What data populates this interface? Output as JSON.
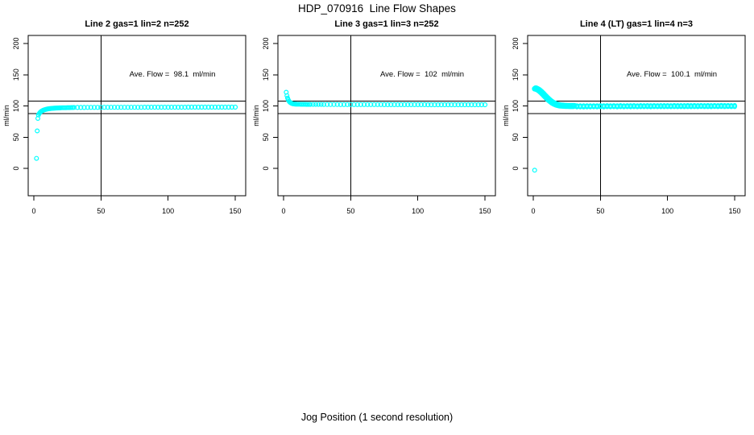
{
  "title": "HDP_070916  Line Flow Shapes",
  "xlabel": "Jog Position (1 second resolution)",
  "colors": {
    "points": "#00FFFF",
    "lines": "#000000",
    "background": "#FFFFFF"
  },
  "chart_data": {
    "type": "scatter",
    "marker": "open-circle",
    "xlim": [
      -4,
      158
    ],
    "ylim": [
      -44,
      213
    ],
    "xticks": [
      0,
      50,
      100,
      150
    ],
    "yticks": [
      0,
      50,
      100,
      150,
      200
    ],
    "ylabel": "ml/min",
    "vline_x": 50,
    "hlines": [
      108,
      87.5
    ],
    "annotation_anchor": {
      "x": 103,
      "y": 150
    },
    "panels": [
      {
        "title": "Line 2 gas=1 lin=2 n=252",
        "annotation": "Ave. Flow =  98.1  ml/min",
        "ave_flow": 98.1,
        "n": 252,
        "series": [
          {
            "name": "startup-transient",
            "ref": "p1_rise",
            "r": 2.4
          },
          {
            "name": "steady-flow",
            "ref": "p1_plateau",
            "r": 2.5
          }
        ]
      },
      {
        "title": "Line 3 gas=1 lin=3 n=252",
        "annotation": "Ave. Flow =  102  ml/min",
        "ave_flow": 102,
        "n": 252,
        "series": [
          {
            "name": "startup-transient",
            "ref": "p2_fall",
            "r": 2.4
          },
          {
            "name": "steady-flow",
            "ref": "p2_plateau",
            "r": 2.5
          }
        ]
      },
      {
        "title": "Line 4 (LT) gas=1 lin=4 n=3",
        "annotation": "Ave. Flow =  100.1  ml/min",
        "ave_flow": 100.1,
        "n": 3,
        "series": [
          {
            "name": "outlier-point",
            "ref": "p3_outlier",
            "r": 2.4
          },
          {
            "name": "startup-transient-run1",
            "ref": "p3_fall",
            "r": 2.8
          },
          {
            "name": "startup-transient-run2",
            "ref": "p3_fall",
            "dx": 0.6,
            "dy": 1.0,
            "r": 2.8
          },
          {
            "name": "steady-flow-run1",
            "ref": "p3_plateau",
            "r": 2.5
          },
          {
            "name": "steady-flow-run2",
            "ref": "p3_plateau",
            "dy": 1.2,
            "r": 2.2
          },
          {
            "name": "steady-flow-run3",
            "ref": "p3_plateau",
            "dy": -1.2,
            "r": 2.2
          }
        ]
      }
    ],
    "points": {
      "p1_rise": [
        [
          2,
          16
        ],
        [
          2.5,
          60
        ],
        [
          3,
          80
        ],
        [
          3.4,
          85.5
        ],
        [
          4,
          87.8
        ],
        [
          4.5,
          89.2
        ],
        [
          5,
          90.3
        ],
        [
          5.5,
          91.2
        ],
        [
          6,
          91.9
        ],
        [
          6.5,
          92.5
        ],
        [
          7,
          93
        ],
        [
          7.5,
          93.5
        ],
        [
          8,
          93.9
        ],
        [
          8.5,
          94.25
        ],
        [
          9,
          94.55
        ],
        [
          9.5,
          94.8
        ],
        [
          10,
          95.05
        ],
        [
          10.5,
          95.25
        ],
        [
          11,
          95.45
        ],
        [
          11.5,
          95.6
        ],
        [
          12,
          95.75
        ],
        [
          12.5,
          95.9
        ],
        [
          13,
          96
        ],
        [
          13.5,
          96.1
        ],
        [
          14,
          96.2
        ],
        [
          14.5,
          96.3
        ],
        [
          15,
          96.4
        ],
        [
          15.5,
          96.5
        ],
        [
          16,
          96.55
        ],
        [
          16.5,
          96.6
        ],
        [
          17,
          96.65
        ],
        [
          17.5,
          96.7
        ],
        [
          18,
          96.75
        ],
        [
          18.5,
          96.8
        ],
        [
          19,
          96.85
        ],
        [
          19.5,
          96.9
        ],
        [
          20,
          96.95
        ],
        [
          21,
          97
        ],
        [
          22,
          97.1
        ],
        [
          23,
          97.15
        ],
        [
          24,
          97.2
        ],
        [
          25,
          97.25
        ],
        [
          26,
          97.3
        ],
        [
          27,
          97.35
        ],
        [
          28,
          97.4
        ],
        [
          29,
          97.45
        ],
        [
          30,
          97.5
        ]
      ],
      "p1_plateau": [
        [
          32.5,
          97.55
        ],
        [
          35,
          97.6
        ],
        [
          37.5,
          97.6
        ],
        [
          40,
          97.65
        ],
        [
          42.5,
          97.65
        ],
        [
          45,
          97.7
        ],
        [
          47.5,
          97.7
        ],
        [
          50,
          97.7
        ],
        [
          52.5,
          97.75
        ],
        [
          55,
          97.75
        ],
        [
          57.5,
          97.75
        ],
        [
          60,
          97.8
        ],
        [
          62.5,
          97.8
        ],
        [
          65,
          97.8
        ],
        [
          67.5,
          97.8
        ],
        [
          70,
          97.85
        ],
        [
          72.5,
          97.85
        ],
        [
          75,
          97.85
        ],
        [
          77.5,
          97.85
        ],
        [
          80,
          97.85
        ],
        [
          82.5,
          97.9
        ],
        [
          85,
          97.9
        ],
        [
          87.5,
          97.9
        ],
        [
          90,
          97.9
        ],
        [
          92.5,
          97.9
        ],
        [
          95,
          97.9
        ],
        [
          97.5,
          97.9
        ],
        [
          100,
          97.95
        ],
        [
          102.5,
          97.95
        ],
        [
          105,
          97.95
        ],
        [
          107.5,
          97.95
        ],
        [
          110,
          97.95
        ],
        [
          112.5,
          97.95
        ],
        [
          115,
          98
        ],
        [
          117.5,
          98
        ],
        [
          120,
          98
        ],
        [
          122.5,
          98
        ],
        [
          125,
          98
        ],
        [
          127.5,
          98
        ],
        [
          130,
          98
        ],
        [
          132.5,
          98
        ],
        [
          135,
          98.05
        ],
        [
          137.5,
          98.05
        ],
        [
          140,
          98.05
        ],
        [
          142.5,
          98.05
        ],
        [
          145,
          98.05
        ],
        [
          147.5,
          98.05
        ],
        [
          150,
          98.1
        ]
      ],
      "p2_fall": [
        [
          2,
          122
        ],
        [
          2.5,
          116.5
        ],
        [
          3,
          112.5
        ],
        [
          3.5,
          109.8
        ],
        [
          4,
          107.8
        ],
        [
          4.5,
          106.4
        ],
        [
          5,
          105.4
        ],
        [
          5.5,
          104.6
        ],
        [
          6,
          104.1
        ],
        [
          6.5,
          103.7
        ],
        [
          7,
          103.4
        ],
        [
          7.5,
          103.2
        ],
        [
          8,
          103.05
        ],
        [
          8.5,
          102.95
        ],
        [
          9,
          102.85
        ],
        [
          9.5,
          102.8
        ],
        [
          10,
          102.75
        ],
        [
          11,
          102.7
        ],
        [
          12,
          102.65
        ],
        [
          13,
          102.6
        ],
        [
          14,
          102.6
        ],
        [
          15,
          102.55
        ],
        [
          16,
          102.55
        ],
        [
          17,
          102.5
        ],
        [
          18,
          102.5
        ],
        [
          19,
          102.5
        ],
        [
          20,
          102.45
        ],
        [
          22,
          102.45
        ],
        [
          24,
          102.4
        ],
        [
          26,
          102.4
        ],
        [
          28,
          102.4
        ],
        [
          30,
          102.35
        ]
      ],
      "p2_plateau": [
        [
          32.5,
          102.35
        ],
        [
          35,
          102.3
        ],
        [
          37.5,
          102.3
        ],
        [
          40,
          102.3
        ],
        [
          42.5,
          102.25
        ],
        [
          45,
          102.25
        ],
        [
          47.5,
          102.25
        ],
        [
          50,
          102.2
        ],
        [
          52.5,
          102.2
        ],
        [
          55,
          102.2
        ],
        [
          57.5,
          102.2
        ],
        [
          60,
          102.2
        ],
        [
          62.5,
          102.15
        ],
        [
          65,
          102.15
        ],
        [
          67.5,
          102.15
        ],
        [
          70,
          102.15
        ],
        [
          72.5,
          102.15
        ],
        [
          75,
          102.1
        ],
        [
          77.5,
          102.1
        ],
        [
          80,
          102.1
        ],
        [
          82.5,
          102.1
        ],
        [
          85,
          102.1
        ],
        [
          87.5,
          102.1
        ],
        [
          90,
          102.05
        ],
        [
          92.5,
          102.05
        ],
        [
          95,
          102.05
        ],
        [
          97.5,
          102.05
        ],
        [
          100,
          102.05
        ],
        [
          102.5,
          102.05
        ],
        [
          105,
          102.05
        ],
        [
          107.5,
          102
        ],
        [
          110,
          102
        ],
        [
          112.5,
          102
        ],
        [
          115,
          102
        ],
        [
          117.5,
          102
        ],
        [
          120,
          102
        ],
        [
          122.5,
          102
        ],
        [
          125,
          102
        ],
        [
          127.5,
          101.95
        ],
        [
          130,
          101.95
        ],
        [
          132.5,
          101.95
        ],
        [
          135,
          101.95
        ],
        [
          137.5,
          101.95
        ],
        [
          140,
          101.95
        ],
        [
          142.5,
          101.9
        ],
        [
          145,
          101.9
        ],
        [
          147.5,
          101.9
        ],
        [
          150,
          101.9
        ]
      ],
      "p3_outlier": [
        [
          1,
          -3
        ]
      ],
      "p3_fall": [
        [
          1,
          127.5
        ],
        [
          1.5,
          127.5
        ],
        [
          2,
          127
        ],
        [
          2.5,
          126.6
        ],
        [
          3,
          126
        ],
        [
          3.5,
          125.4
        ],
        [
          4,
          124.6
        ],
        [
          4.5,
          123.8
        ],
        [
          5,
          122.9
        ],
        [
          5.5,
          121.9
        ],
        [
          6,
          120.9
        ],
        [
          6.5,
          119.8
        ],
        [
          7,
          118.7
        ],
        [
          7.5,
          117.6
        ],
        [
          8,
          116.4
        ],
        [
          8.5,
          115.3
        ],
        [
          9,
          114.2
        ],
        [
          9.5,
          113.1
        ],
        [
          10,
          112
        ],
        [
          10.5,
          111
        ],
        [
          11,
          110
        ],
        [
          11.5,
          109
        ],
        [
          12,
          108.1
        ],
        [
          12.5,
          107.2
        ],
        [
          13,
          106.4
        ],
        [
          13.5,
          105.6
        ],
        [
          14,
          104.9
        ],
        [
          14.5,
          104.2
        ],
        [
          15,
          103.6
        ],
        [
          15.5,
          103.1
        ],
        [
          16,
          102.6
        ],
        [
          16.5,
          102.1
        ],
        [
          17,
          101.7
        ],
        [
          17.5,
          101.4
        ],
        [
          18,
          101.1
        ],
        [
          18.5,
          100.8
        ],
        [
          19,
          100.6
        ],
        [
          19.5,
          100.4
        ],
        [
          20,
          100.2
        ],
        [
          21,
          100
        ],
        [
          22,
          99.85
        ],
        [
          23,
          99.7
        ],
        [
          24,
          99.6
        ],
        [
          25,
          99.5
        ],
        [
          26,
          99.45
        ],
        [
          27,
          99.4
        ],
        [
          28,
          99.4
        ],
        [
          29,
          99.35
        ],
        [
          30,
          99.35
        ]
      ],
      "p3_plateau": [
        [
          32.5,
          99.35
        ],
        [
          35,
          99.4
        ],
        [
          37.5,
          99.3
        ],
        [
          40,
          99.45
        ],
        [
          42.5,
          99.35
        ],
        [
          45,
          99.5
        ],
        [
          47.5,
          99.4
        ],
        [
          50,
          99.55
        ],
        [
          52.5,
          99.45
        ],
        [
          55,
          99.6
        ],
        [
          57.5,
          99.5
        ],
        [
          60,
          99.6
        ],
        [
          62.5,
          99.45
        ],
        [
          65,
          99.65
        ],
        [
          67.5,
          99.5
        ],
        [
          70,
          99.6
        ],
        [
          72.5,
          99.55
        ],
        [
          75,
          99.7
        ],
        [
          77.5,
          99.5
        ],
        [
          80,
          99.65
        ],
        [
          82.5,
          99.6
        ],
        [
          85,
          99.7
        ],
        [
          87.5,
          99.55
        ],
        [
          90,
          99.75
        ],
        [
          92.5,
          99.6
        ],
        [
          95,
          99.7
        ],
        [
          97.5,
          99.65
        ],
        [
          100,
          99.75
        ],
        [
          102.5,
          99.6
        ],
        [
          105,
          99.8
        ],
        [
          107.5,
          99.65
        ],
        [
          110,
          99.75
        ],
        [
          112.5,
          99.7
        ],
        [
          115,
          99.8
        ],
        [
          117.5,
          99.65
        ],
        [
          120,
          99.8
        ],
        [
          122.5,
          99.7
        ],
        [
          125,
          99.85
        ],
        [
          127.5,
          99.75
        ],
        [
          130,
          99.8
        ],
        [
          132.5,
          99.7
        ],
        [
          135,
          99.85
        ],
        [
          137.5,
          99.75
        ],
        [
          140,
          99.9
        ],
        [
          142.5,
          99.8
        ],
        [
          145,
          99.85
        ],
        [
          147.5,
          99.75
        ],
        [
          150,
          99.8
        ]
      ]
    }
  }
}
